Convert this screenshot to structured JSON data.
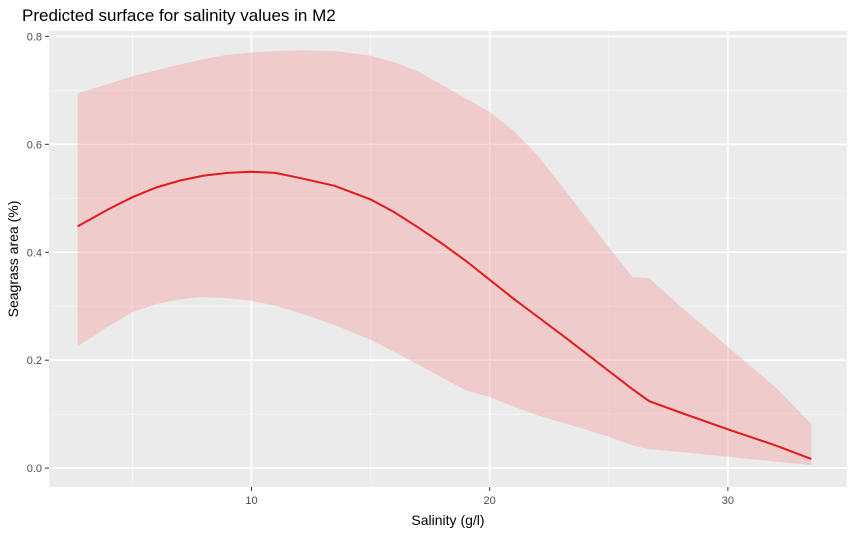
{
  "chart_data": {
    "type": "line",
    "title": "Predicted surface for salinity values in M2",
    "xlabel": "Salinity (g/l)",
    "ylabel": "Seagrass area (%)",
    "xlim": [
      1.5,
      35
    ],
    "ylim": [
      -0.035,
      0.81
    ],
    "x_ticks": [
      10,
      20,
      30
    ],
    "y_ticks": [
      0.0,
      0.2,
      0.4,
      0.6,
      0.8
    ],
    "x_tick_labels": [
      "10",
      "20",
      "30"
    ],
    "y_tick_labels": [
      "0.0",
      "0.2",
      "0.4",
      "0.6",
      "0.8"
    ],
    "x_minor_ticks": [
      5,
      15,
      25
    ],
    "y_minor_ticks": [
      0.1,
      0.3,
      0.5,
      0.7
    ],
    "grid": true,
    "legend": "none",
    "series": [
      {
        "x": [
          2.7,
          4,
          5,
          6,
          7,
          8,
          9,
          10,
          11,
          12,
          13.5,
          15,
          16,
          17,
          18,
          19,
          20,
          21,
          22,
          23,
          24,
          25,
          26,
          26.7,
          28,
          30,
          32,
          33.5
        ],
        "y": [
          0.448,
          0.48,
          0.502,
          0.52,
          0.533,
          0.542,
          0.547,
          0.549,
          0.547,
          0.538,
          0.523,
          0.498,
          0.474,
          0.446,
          0.416,
          0.384,
          0.349,
          0.314,
          0.281,
          0.248,
          0.214,
          0.18,
          0.146,
          0.124,
          0.103,
          0.072,
          0.042,
          0.017
        ],
        "lower": [
          0.226,
          0.263,
          0.289,
          0.304,
          0.313,
          0.317,
          0.315,
          0.31,
          0.301,
          0.288,
          0.265,
          0.238,
          0.215,
          0.192,
          0.168,
          0.144,
          0.132,
          0.114,
          0.098,
          0.085,
          0.072,
          0.058,
          0.042,
          0.035,
          0.03,
          0.021,
          0.012,
          0.006
        ],
        "upper": [
          0.695,
          0.712,
          0.726,
          0.737,
          0.748,
          0.758,
          0.766,
          0.77,
          0.773,
          0.774,
          0.773,
          0.764,
          0.752,
          0.735,
          0.71,
          0.685,
          0.66,
          0.625,
          0.58,
          0.524,
          0.467,
          0.409,
          0.354,
          0.352,
          0.3,
          0.225,
          0.15,
          0.082
        ]
      }
    ]
  },
  "colors": {
    "panel": "#ebebeb",
    "grid_major": "#ffffff",
    "grid_minor": "#f5f5f5",
    "line": "#e31a1c",
    "ribbon": "#f4a3a4",
    "axis_text": "#4d4d4d",
    "title_text": "#000000"
  }
}
